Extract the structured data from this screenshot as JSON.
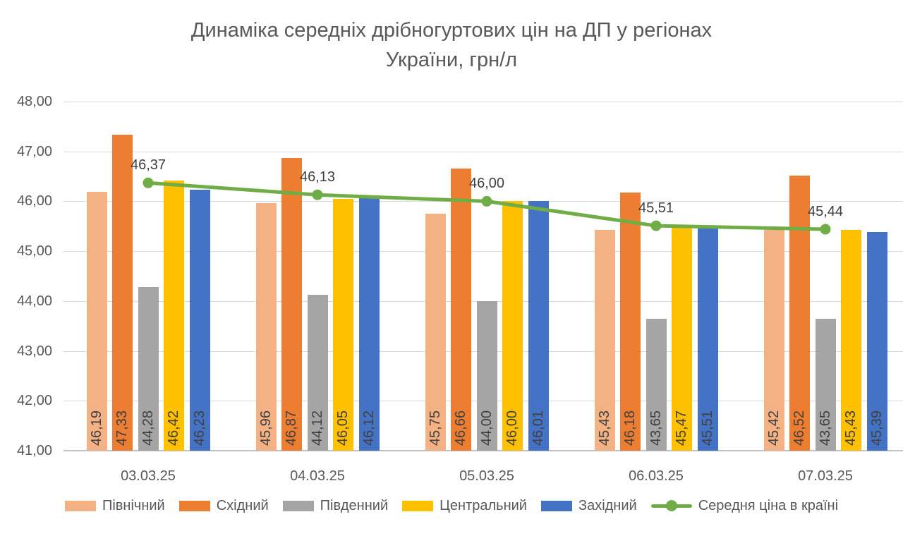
{
  "title": {
    "line1": "Динаміка середніх дрібногуртових цін на ДП у регіонах",
    "line2": "України, грн/л"
  },
  "chart_data": {
    "type": "bar",
    "subtype": "grouped bars with overlay line",
    "title": "Динаміка середніх дрібногуртових цін на ДП у регіонах України, грн/л",
    "categories": [
      "03.03.25",
      "04.03.25",
      "05.03.25",
      "06.03.25",
      "07.03.25"
    ],
    "series": [
      {
        "name": "Північний",
        "kind": "bar",
        "color": "#F4B183",
        "values": [
          46.19,
          45.96,
          45.75,
          45.43,
          45.42
        ]
      },
      {
        "name": "Східний",
        "kind": "bar",
        "color": "#ED7D31",
        "values": [
          47.33,
          46.87,
          46.66,
          46.18,
          46.52
        ]
      },
      {
        "name": "Південний",
        "kind": "bar",
        "color": "#A5A5A5",
        "values": [
          44.28,
          44.12,
          44.0,
          43.65,
          43.65
        ]
      },
      {
        "name": "Центральний",
        "kind": "bar",
        "color": "#FFC000",
        "values": [
          46.42,
          46.05,
          46.0,
          45.47,
          45.43
        ]
      },
      {
        "name": "Західний",
        "kind": "bar",
        "color": "#4472C4",
        "values": [
          46.23,
          46.12,
          46.01,
          45.51,
          45.39
        ]
      },
      {
        "name": "Середня ціна в країні",
        "kind": "line",
        "color": "#70AD47",
        "values": [
          46.37,
          46.13,
          46.0,
          45.51,
          45.44
        ]
      }
    ],
    "ylim": [
      41,
      48
    ],
    "yticks": [
      41,
      42,
      43,
      44,
      45,
      46,
      47,
      48
    ],
    "ytick_labels": [
      "41,00",
      "42,00",
      "43,00",
      "44,00",
      "45,00",
      "46,00",
      "47,00",
      "48,00"
    ],
    "xlabel": "",
    "ylabel": "",
    "grid": true,
    "decimal_separator": ",",
    "data_labels": true,
    "bar_label_rotation_deg": 90,
    "legend_position": "bottom",
    "text_colors": {
      "axis": "#595959",
      "data_labels": "#404040",
      "title": "#595959"
    }
  }
}
